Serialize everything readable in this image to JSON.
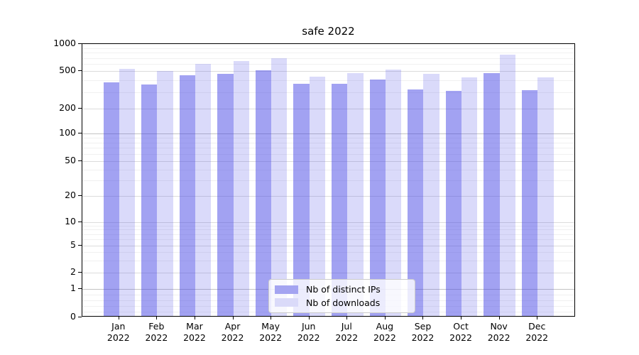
{
  "title": "safe 2022",
  "chart_data": {
    "type": "bar",
    "title": "safe 2022",
    "categories": [
      "Jan 2022",
      "Feb 2022",
      "Mar 2022",
      "Apr 2022",
      "May 2022",
      "Jun 2022",
      "Jul 2022",
      "Aug 2022",
      "Sep 2022",
      "Oct 2022",
      "Nov 2022",
      "Dec 2022"
    ],
    "series": [
      {
        "name": "Nb of distinct IPs",
        "swatch_color": "#a4a4f1",
        "bar_color": "rgba(70,70,230,0.5)",
        "values": [
          377,
          355,
          442,
          462,
          506,
          362,
          361,
          399,
          315,
          304,
          467,
          308
        ]
      },
      {
        "name": "Nb of downloads",
        "swatch_color": "#dadaf9",
        "bar_color": "rgba(70,70,230,0.2)",
        "values": [
          525,
          497,
          592,
          633,
          681,
          431,
          473,
          508,
          462,
          426,
          745,
          426
        ]
      }
    ],
    "yscale": "symlog",
    "ylim": [
      0,
      1000
    ],
    "yticks": [
      1000,
      500,
      200,
      100,
      50,
      20,
      10,
      5,
      2,
      1,
      0
    ],
    "grid": true,
    "legend_position": "lower center"
  }
}
